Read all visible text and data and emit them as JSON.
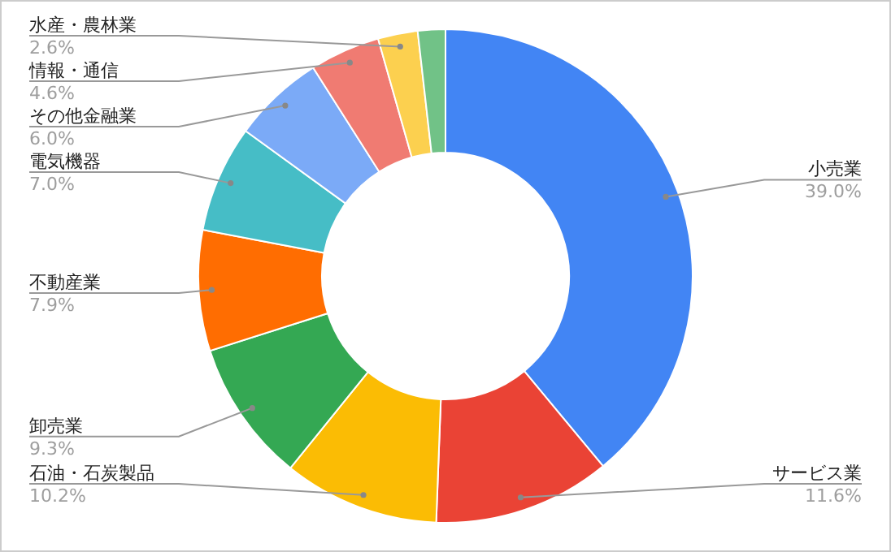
{
  "chart_data": {
    "type": "donut",
    "categories": [
      "小売業",
      "サービス業",
      "石油・石炭製品",
      "卸売業",
      "不動産業",
      "電気機器",
      "その他金融業",
      "情報・通信",
      "水産・農林業",
      null
    ],
    "values": [
      39.0,
      11.6,
      10.2,
      9.3,
      7.9,
      7.0,
      6.0,
      4.6,
      2.6,
      1.8
    ],
    "value_labels": [
      "39.0%",
      "11.6%",
      "10.2%",
      "9.3%",
      "7.9%",
      "7.0%",
      "6.0%",
      "4.6%",
      "2.6%",
      null
    ],
    "colors": [
      "#4285f4",
      "#ea4335",
      "#fbbc04",
      "#34a853",
      "#ff6d01",
      "#46bdc6",
      "#7baaf7",
      "#f07b72",
      "#fcd04f",
      "#71c287"
    ]
  }
}
